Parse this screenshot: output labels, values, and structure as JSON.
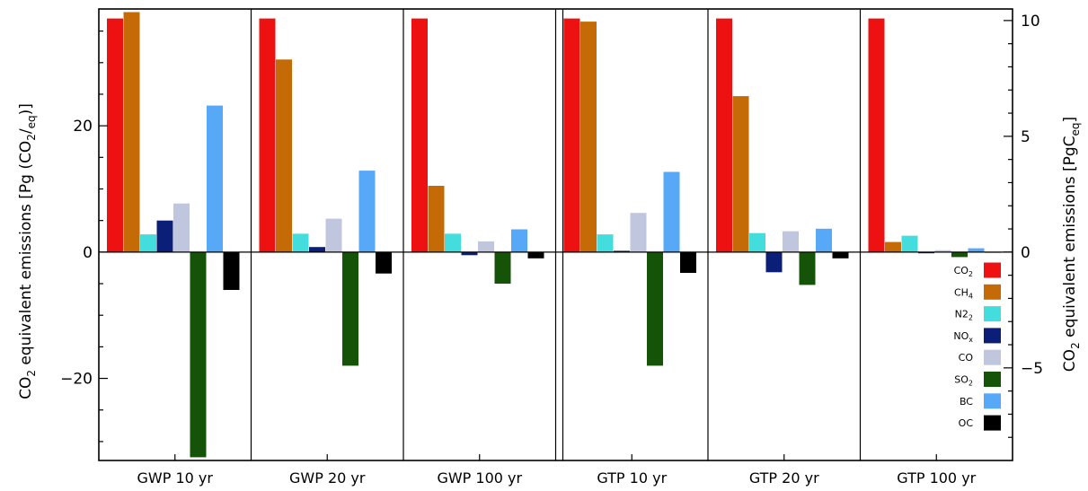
{
  "chart_data": {
    "type": "bar",
    "title": "",
    "categories": [
      "GWP 10 yr",
      "GWP 20 yr",
      "GWP 100 yr",
      "GTP 10 yr",
      "GTP 20 yr",
      "GTP 100 yr"
    ],
    "series": [
      {
        "name": "CO2",
        "sub": "2",
        "color": "#ee1111",
        "values": [
          37.0,
          37.0,
          37.0,
          37.0,
          37.0,
          37.0
        ]
      },
      {
        "name": "CH4",
        "sub": "4",
        "color": "#c46a06",
        "values": [
          38.0,
          30.5,
          10.5,
          36.5,
          24.7,
          1.6
        ]
      },
      {
        "name": "N2O",
        "sub": "2",
        "color": "#44dddd",
        "values": [
          2.8,
          2.9,
          2.9,
          2.8,
          3.0,
          2.6
        ]
      },
      {
        "name": "NOx",
        "sub": "x",
        "color": "#0b1f78",
        "values": [
          5.0,
          0.8,
          -0.5,
          0.2,
          -3.2,
          -0.2
        ]
      },
      {
        "name": "CO",
        "sub": "",
        "color": "#c0c6de",
        "values": [
          7.7,
          5.3,
          1.7,
          6.2,
          3.3,
          0.3
        ]
      },
      {
        "name": "SO2",
        "sub": "2",
        "color": "#155308",
        "values": [
          -32.5,
          -18.0,
          -5.0,
          -18.0,
          -5.2,
          -0.8
        ]
      },
      {
        "name": "BC",
        "sub": "",
        "color": "#57a9f7",
        "values": [
          23.2,
          12.9,
          3.6,
          12.7,
          3.7,
          0.6
        ]
      },
      {
        "name": "OC",
        "sub": "",
        "color": "#000000",
        "values": [
          -6.0,
          -3.4,
          -1.0,
          -3.3,
          -1.0,
          -0.1
        ]
      }
    ],
    "ylabel": {
      "pre": "CO",
      "sub": "2",
      "mid": " equivalent emissions  [Pg (CO",
      "sub2": "2",
      "mid2": "/",
      "sub3": "eq",
      "post": ")]"
    },
    "ylabel_right": {
      "pre": "CO",
      "sub": "2",
      "mid": " equivalent emissions  [PgC",
      "sub2": "eq",
      "post": "]"
    },
    "ylim": [
      -33,
      38.5
    ],
    "yticks": [
      -20,
      0,
      20
    ],
    "yticks_right": [
      -5,
      0,
      5,
      10
    ],
    "right_axis_factor": 3.667,
    "legend_position": "right-middle",
    "grid": false
  }
}
